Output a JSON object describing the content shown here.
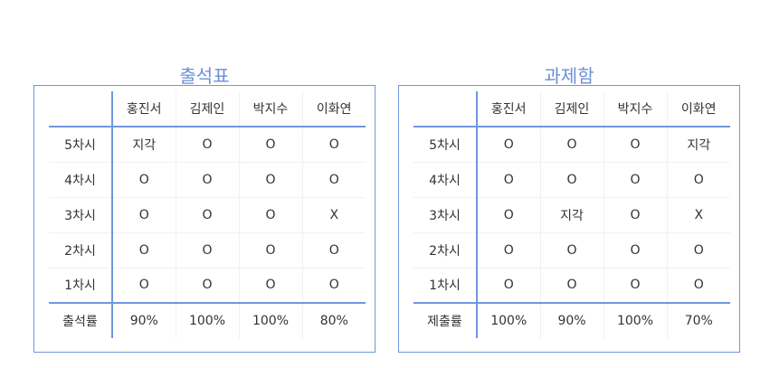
{
  "attendance": {
    "title": "출석표",
    "headers": [
      "",
      "홍진서",
      "김제인",
      "박지수",
      "이화연"
    ],
    "rows": [
      {
        "label": "5차시",
        "cells": [
          "지각",
          "O",
          "O",
          "O"
        ]
      },
      {
        "label": "4차시",
        "cells": [
          "O",
          "O",
          "O",
          "O"
        ]
      },
      {
        "label": "3차시",
        "cells": [
          "O",
          "O",
          "O",
          "X"
        ]
      },
      {
        "label": "2차시",
        "cells": [
          "O",
          "O",
          "O",
          "O"
        ]
      },
      {
        "label": "1차시",
        "cells": [
          "O",
          "O",
          "O",
          "O"
        ]
      }
    ],
    "footer": {
      "label": "출석률",
      "cells": [
        "90%",
        "100%",
        "100%",
        "80%"
      ]
    }
  },
  "assignments": {
    "title": "과제함",
    "headers": [
      "",
      "홍진서",
      "김제인",
      "박지수",
      "이화연"
    ],
    "rows": [
      {
        "label": "5차시",
        "cells": [
          "O",
          "O",
          "O",
          "지각"
        ]
      },
      {
        "label": "4차시",
        "cells": [
          "O",
          "O",
          "O",
          "O"
        ]
      },
      {
        "label": "3차시",
        "cells": [
          "O",
          "지각",
          "O",
          "X"
        ]
      },
      {
        "label": "2차시",
        "cells": [
          "O",
          "O",
          "O",
          "O"
        ]
      },
      {
        "label": "1차시",
        "cells": [
          "O",
          "O",
          "O",
          "O"
        ]
      }
    ],
    "footer": {
      "label": "제출률",
      "cells": [
        "100%",
        "90%",
        "100%",
        "70%"
      ]
    }
  },
  "colors": {
    "accent": "#7196de",
    "title": "#6d8fd6",
    "text": "#333333",
    "grid": "#eef1f5"
  }
}
